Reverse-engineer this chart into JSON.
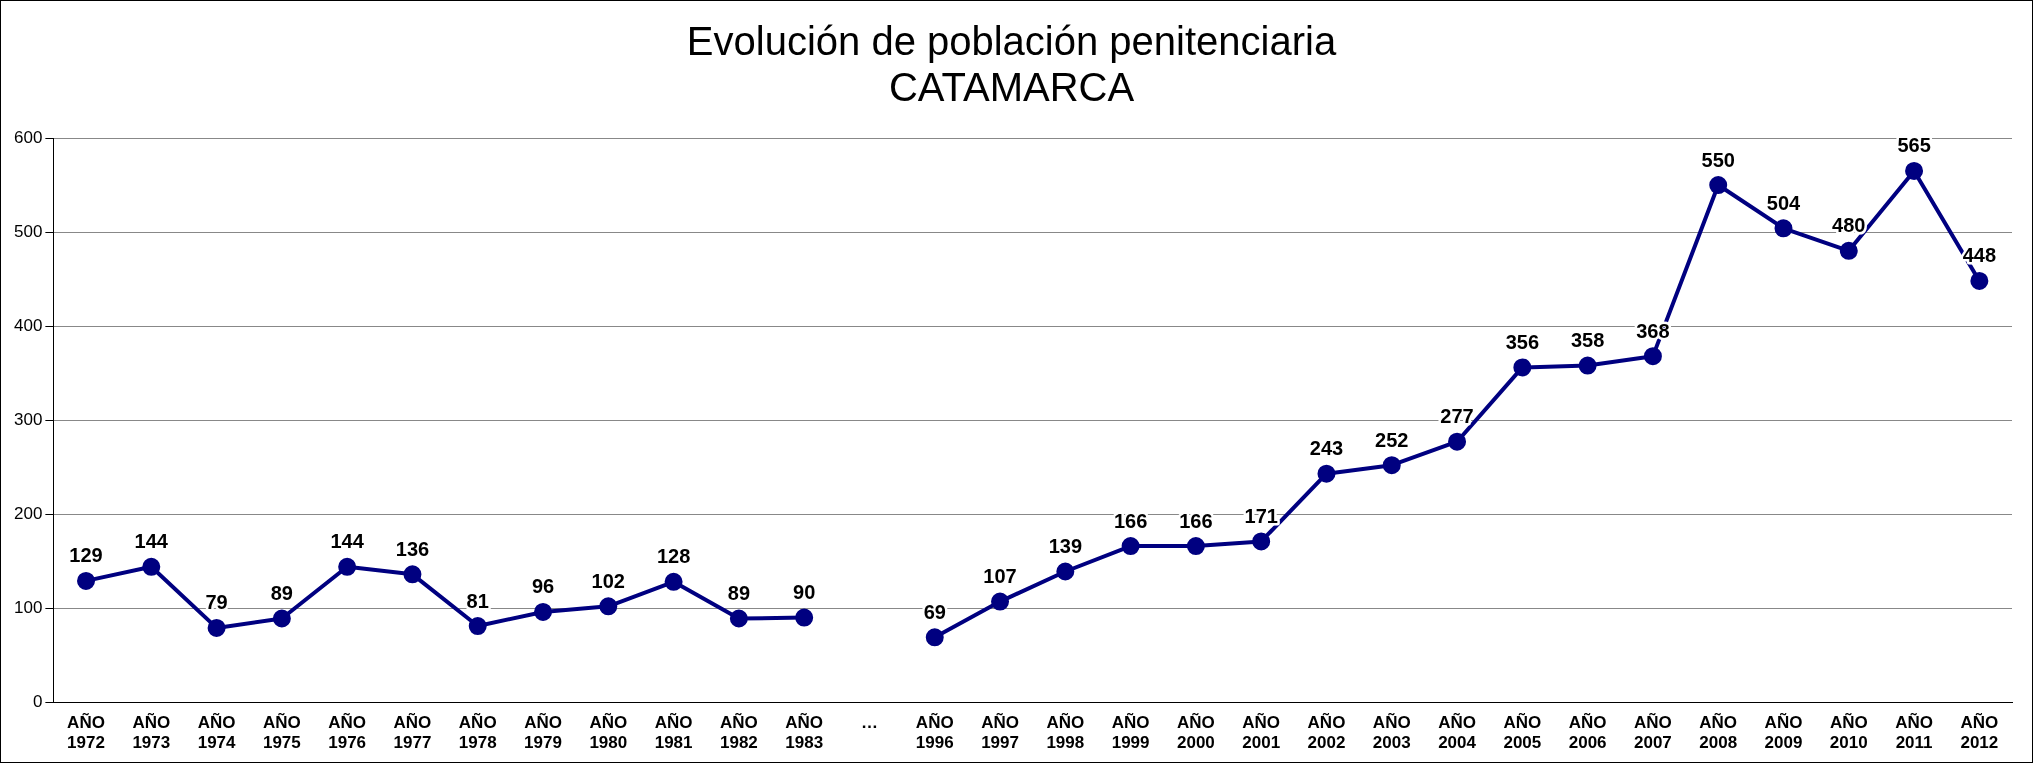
{
  "chart_data": {
    "type": "line",
    "title": "Evolución de población penitenciaria\nCATAMARCA",
    "categories": [
      "AÑO 1972",
      "AÑO 1973",
      "AÑO 1974",
      "AÑO 1975",
      "AÑO 1976",
      "AÑO 1977",
      "AÑO 1978",
      "AÑO 1979",
      "AÑO 1980",
      "AÑO 1981",
      "AÑO 1982",
      "AÑO 1983",
      "…",
      "AÑO 1996",
      "AÑO 1997",
      "AÑO 1998",
      "AÑO 1999",
      "AÑO 2000",
      "AÑO 2001",
      "AÑO 2002",
      "AÑO 2003",
      "AÑO 2004",
      "AÑO 2005",
      "AÑO 2006",
      "AÑO 2007",
      "AÑO 2008",
      "AÑO 2009",
      "AÑO 2010",
      "AÑO 2011",
      "AÑO 2012"
    ],
    "series": [
      {
        "color": "#000080",
        "values": [
          129,
          144,
          79,
          89,
          144,
          136,
          81,
          96,
          102,
          128,
          89,
          90,
          null,
          69,
          107,
          139,
          166,
          166,
          171,
          243,
          252,
          277,
          356,
          358,
          368,
          550,
          504,
          480,
          565,
          448
        ]
      }
    ],
    "ylim": [
      0,
      600
    ],
    "yticks": [
      0,
      100,
      200,
      300,
      400,
      500,
      600
    ],
    "grid": "y",
    "legend": false,
    "marker": "circle",
    "line_style": "solid",
    "data_labels": true
  }
}
